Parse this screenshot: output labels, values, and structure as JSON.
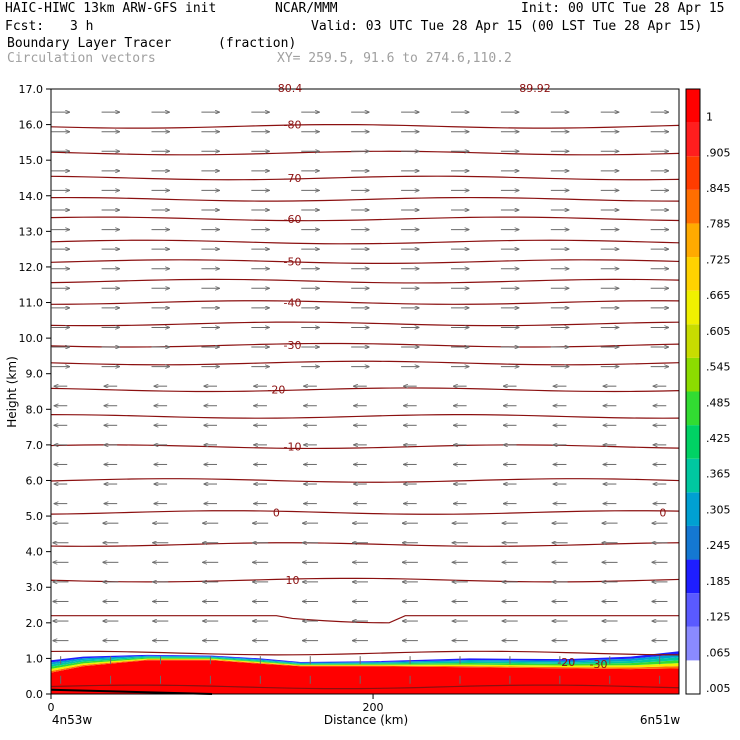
{
  "header": {
    "title": "HAIC-HIWC 13km ARW-GFS init",
    "org": "NCAR/MMM",
    "init": "Init: 00 UTC Tue 28 Apr 15",
    "fcst_label": "Fcst:",
    "fcst_value": "3 h",
    "valid": "Valid: 03 UTC Tue 28 Apr 15 (00 LST Tue 28 Apr 15)",
    "field_name": "Boundary Layer Tracer",
    "field_units": "(fraction)",
    "vector_name": "Circulation vectors",
    "xy_range": "XY= 259.5, 91.6 to 274.6,110.2"
  },
  "chart_data": {
    "type": "cross-section",
    "xlabel": "Distance (km)",
    "ylabel": "Height (km)",
    "x_left_label": "4n53w",
    "x_right_label": "6n51w",
    "xlim": [
      0,
      390
    ],
    "ylim": [
      0,
      17
    ],
    "x_ticks": [
      {
        "value": 0,
        "label": "0"
      },
      {
        "value": 200,
        "label": "200"
      }
    ],
    "y_ticks": [
      {
        "value": 0,
        "label": "0.0"
      },
      {
        "value": 1,
        "label": "1.0"
      },
      {
        "value": 2,
        "label": "2.0"
      },
      {
        "value": 3,
        "label": "3.0"
      },
      {
        "value": 4,
        "label": "4.0"
      },
      {
        "value": 5,
        "label": "5.0"
      },
      {
        "value": 6,
        "label": "6.0"
      },
      {
        "value": 7,
        "label": "7.0"
      },
      {
        "value": 8,
        "label": "8.0"
      },
      {
        "value": 9,
        "label": "9.0"
      },
      {
        "value": 10,
        "label": "10.0"
      },
      {
        "value": 11,
        "label": "11.0"
      },
      {
        "value": 12,
        "label": "12.0"
      },
      {
        "value": 13,
        "label": "13.0"
      },
      {
        "value": 14,
        "label": "14.0"
      },
      {
        "value": 15,
        "label": "15.0"
      },
      {
        "value": 16,
        "label": "16.0"
      },
      {
        "value": 17,
        "label": "17.0"
      }
    ],
    "temperature_contours_height_km": [
      0.2,
      1.15,
      2.2,
      3.2,
      4.2,
      5.1,
      6.0,
      6.95,
      7.8,
      8.55,
      9.3,
      9.8,
      10.4,
      11.0,
      11.6,
      12.15,
      12.7,
      13.35,
      13.9,
      14.5,
      15.2,
      15.95
    ],
    "contour_labels": [
      {
        "label": "-80",
        "x": 150,
        "y": 16.0
      },
      {
        "label": "-70",
        "x": 150,
        "y": 14.5
      },
      {
        "label": "-60",
        "x": 150,
        "y": 13.35
      },
      {
        "label": "-50",
        "x": 150,
        "y": 12.15
      },
      {
        "label": "-40",
        "x": 150,
        "y": 11.0
      },
      {
        "label": "-30",
        "x": 150,
        "y": 9.8
      },
      {
        "label": "-20",
        "x": 140,
        "y": 8.55
      },
      {
        "label": "-10",
        "x": 150,
        "y": 6.95
      },
      {
        "label": "0",
        "x": 140,
        "y": 5.1
      },
      {
        "label": "0",
        "x": 380,
        "y": 5.1
      },
      {
        "label": "10",
        "x": 150,
        "y": 3.2
      },
      {
        "label": "-20",
        "x": 320,
        "y": 0.9
      },
      {
        "label": "-30",
        "x": 340,
        "y": 0.85
      }
    ],
    "top_labels": [
      "80.4",
      "89.92"
    ],
    "colorbar": {
      "labels": [
        ".005",
        ".065",
        ".125",
        ".185",
        ".245",
        ".305",
        ".365",
        ".425",
        ".485",
        ".545",
        ".605",
        ".665",
        ".725",
        ".785",
        ".845",
        ".905",
        "1"
      ],
      "colors": [
        "#ffffff",
        "#8a8aff",
        "#5a5aff",
        "#1e1eff",
        "#1478d2",
        "#00a0d2",
        "#00c8a0",
        "#00d264",
        "#32dc32",
        "#8cdc00",
        "#c8dc00",
        "#f0f000",
        "#ffd200",
        "#ffaa00",
        "#ff6e00",
        "#ff3c00",
        "#ff1e1e",
        "#ff0000"
      ]
    },
    "tracer_profile": [
      {
        "x": 0,
        "red_top": 0.6,
        "top": 0.95
      },
      {
        "x": 20,
        "red_top": 0.78,
        "top": 1.05
      },
      {
        "x": 60,
        "red_top": 0.95,
        "top": 1.1
      },
      {
        "x": 100,
        "red_top": 0.95,
        "top": 1.08
      },
      {
        "x": 130,
        "red_top": 0.85,
        "top": 1.0
      },
      {
        "x": 155,
        "red_top": 0.78,
        "top": 0.9
      },
      {
        "x": 200,
        "red_top": 0.78,
        "top": 0.92
      },
      {
        "x": 260,
        "red_top": 0.75,
        "top": 1.0
      },
      {
        "x": 320,
        "red_top": 0.72,
        "top": 0.98
      },
      {
        "x": 360,
        "red_top": 0.7,
        "top": 1.05
      },
      {
        "x": 390,
        "red_top": 0.72,
        "top": 1.2
      }
    ]
  }
}
